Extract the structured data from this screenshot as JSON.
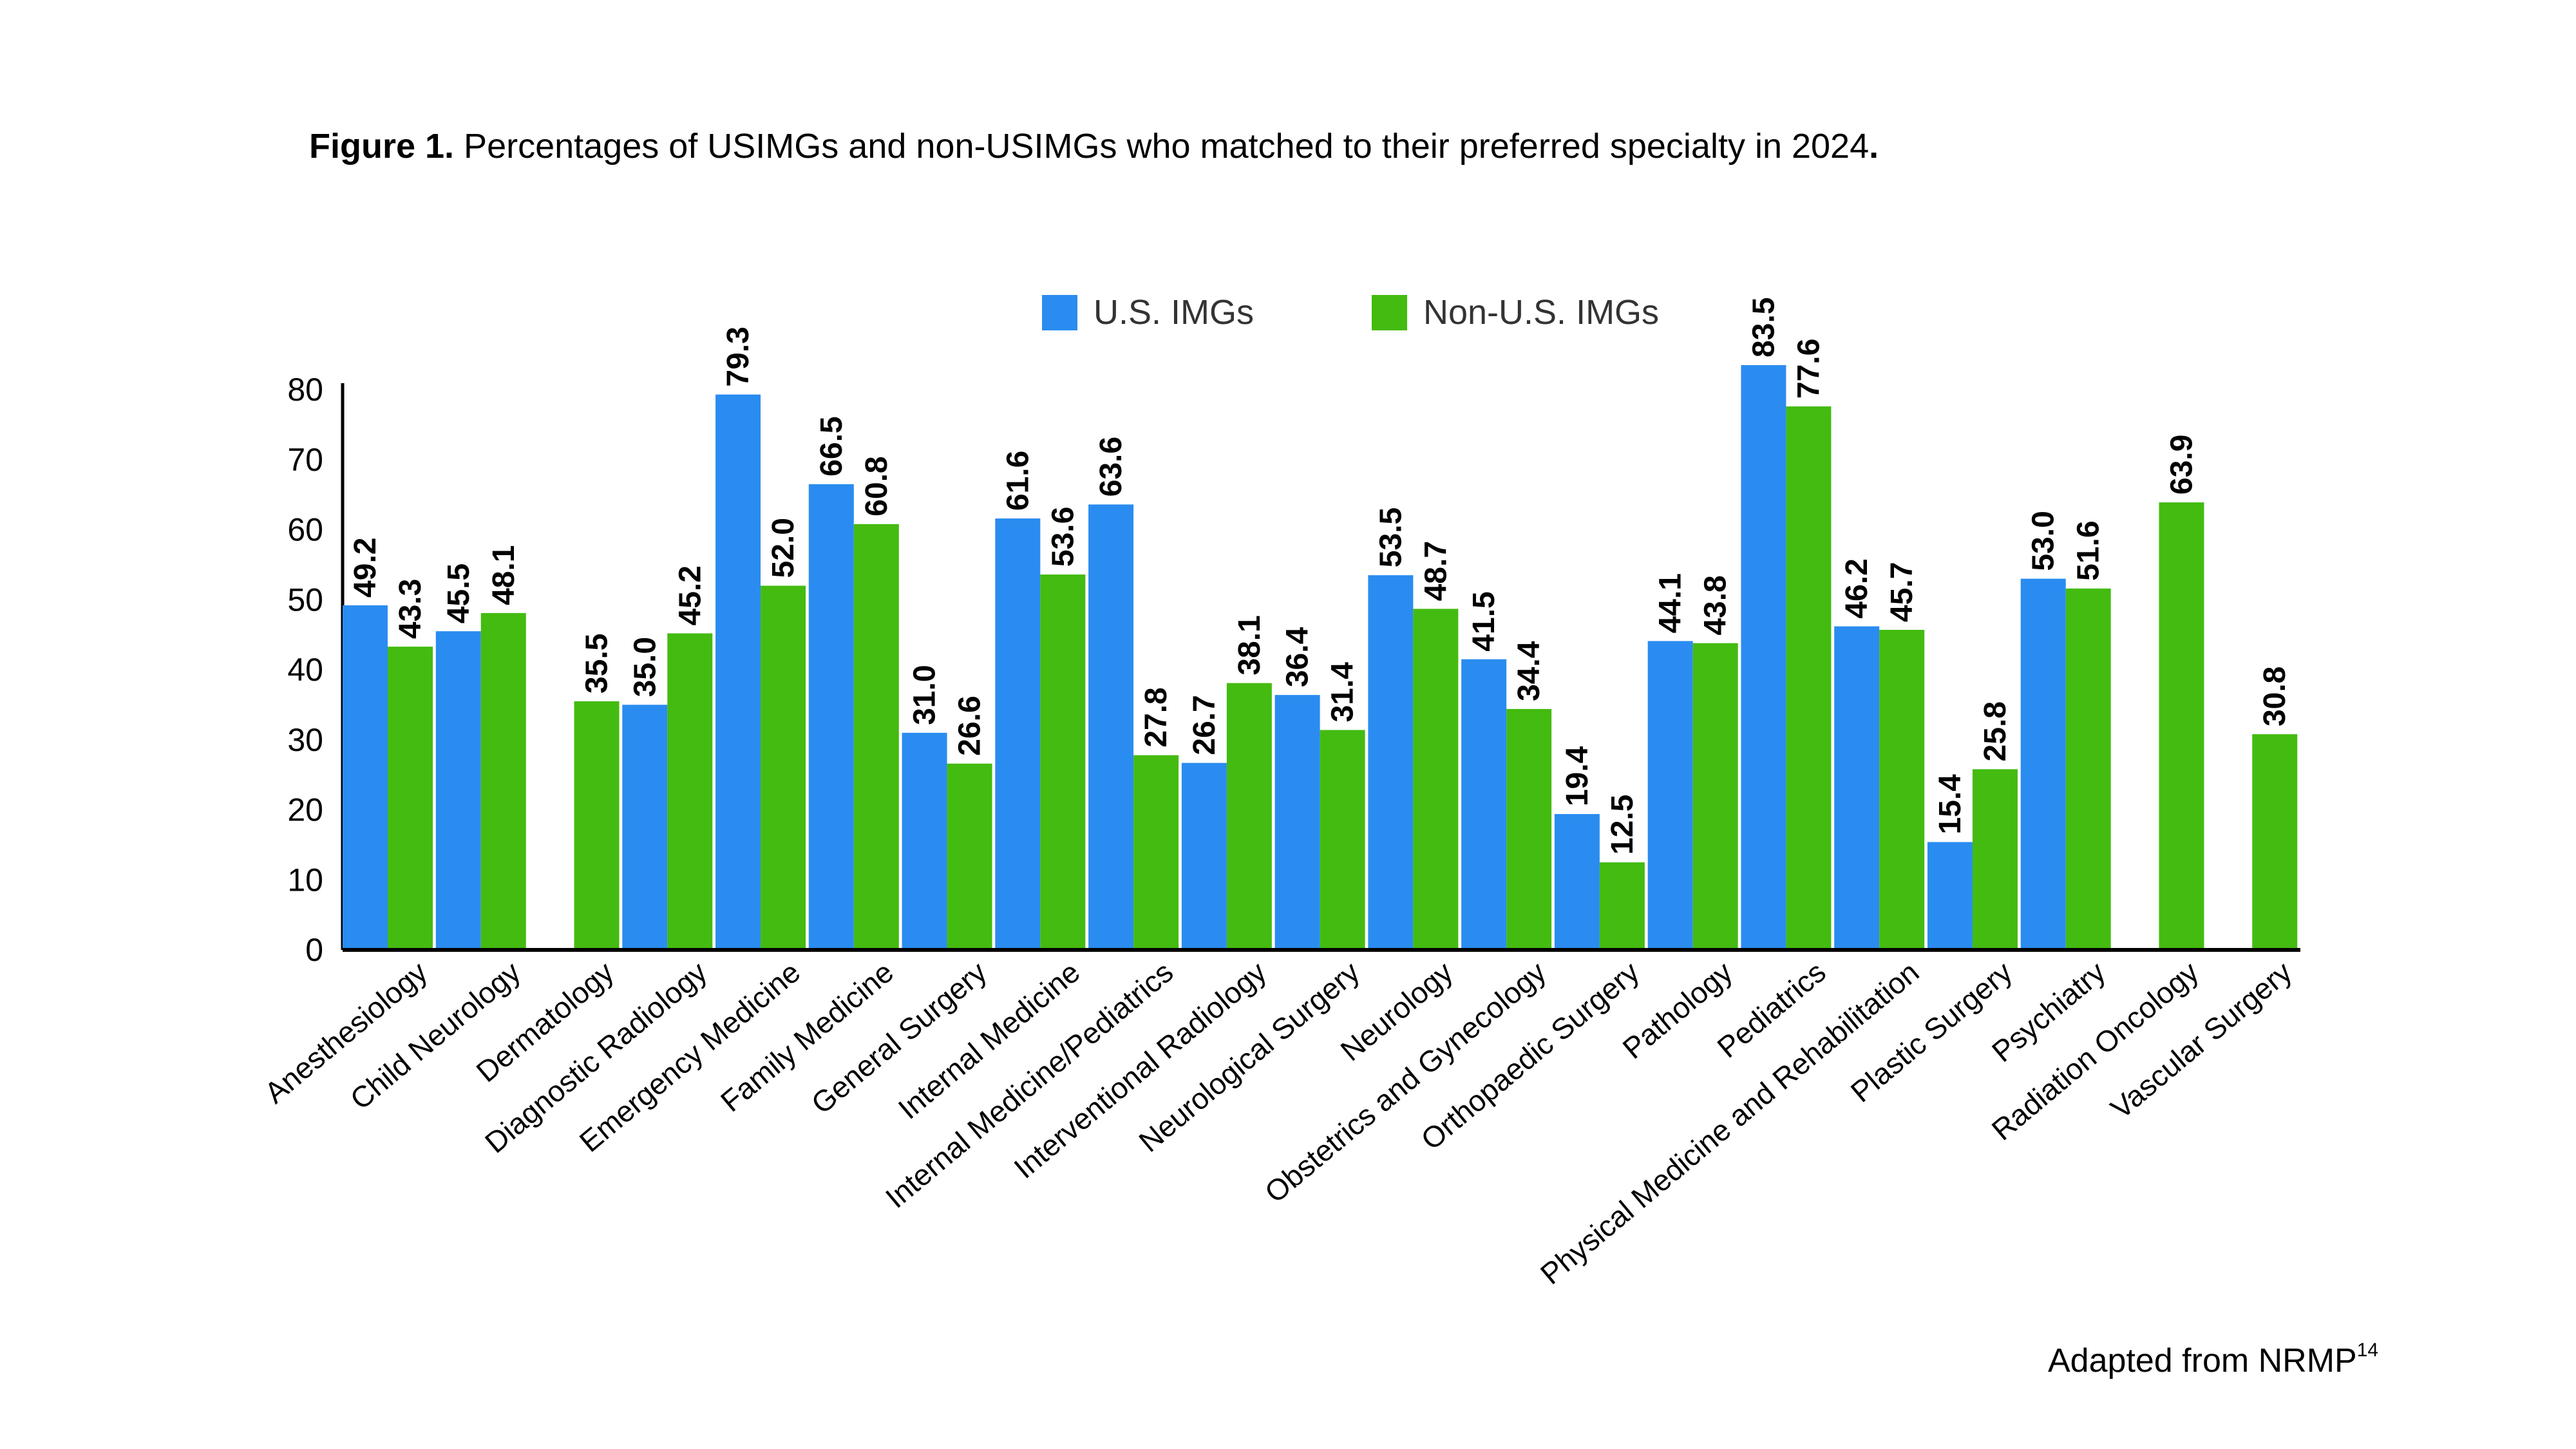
{
  "figure": {
    "title_bold": "Figure 1.",
    "title_rest": " Percentages of USIMGs and non-USIMGs who matched to their preferred specialty in 2024",
    "title_end": ".",
    "source_text": "Adapted from NRMP",
    "source_ref": "14"
  },
  "chart_data": {
    "type": "bar",
    "title": "",
    "xlabel": "",
    "ylabel": "",
    "ylim": [
      0,
      80
    ],
    "yticks": [
      0,
      10,
      20,
      30,
      40,
      50,
      60,
      70,
      80
    ],
    "grid": false,
    "legend_position": "top-center",
    "categories": [
      "Anesthesiology",
      "Child Neurology",
      "Dermatology",
      "Diagnostic Radiology",
      "Emergency Medicine",
      "Family Medicine",
      "General Surgery",
      "Internal Medicine",
      "Internal Medicine/Pediatrics",
      "Interventional Radiology",
      "Neurological Surgery",
      "Neurology",
      "Obstetrics and Gynecology",
      "Orthopaedic Surgery",
      "Pathology",
      "Pediatrics",
      "Physical Medicine and Rehabilitation",
      "Plastic Surgery",
      "Psychiatry",
      "Radiation Oncology",
      "Vascular Surgery"
    ],
    "series": [
      {
        "name": "U.S. IMGs",
        "color": "#2a8cf0",
        "values": [
          49.2,
          45.5,
          null,
          35.0,
          79.3,
          66.5,
          31.0,
          61.6,
          63.6,
          26.7,
          36.4,
          53.5,
          41.5,
          19.4,
          44.1,
          83.5,
          46.2,
          15.4,
          53.0,
          null,
          null
        ],
        "labels": [
          "49.2",
          "45.5",
          "",
          "35.0",
          "79.3",
          "66.5",
          "31.0",
          "61.6",
          "63.6",
          "26.7",
          "36.4",
          "53.5",
          "41.5",
          "19.4",
          "44.1",
          "83.5",
          "46.2",
          "15.4",
          "53.0",
          "",
          ""
        ]
      },
      {
        "name": "Non-U.S. IMGs",
        "color": "#44bb11",
        "values": [
          43.3,
          48.1,
          35.5,
          45.2,
          52.0,
          60.8,
          26.6,
          53.6,
          27.8,
          38.1,
          31.4,
          48.7,
          34.4,
          12.5,
          43.8,
          77.6,
          45.7,
          25.8,
          51.6,
          63.9,
          30.8
        ],
        "labels": [
          "43.3",
          "48.1",
          "35.5",
          "45.2",
          "52.0",
          "60.8",
          "26.6",
          "53.6",
          "27.8",
          "38.1",
          "31.4",
          "48.7",
          "34.4",
          "12.5",
          "43.8",
          "77.6",
          "45.7",
          "25.8",
          "51.6",
          "63.9",
          "30.8"
        ]
      }
    ]
  }
}
